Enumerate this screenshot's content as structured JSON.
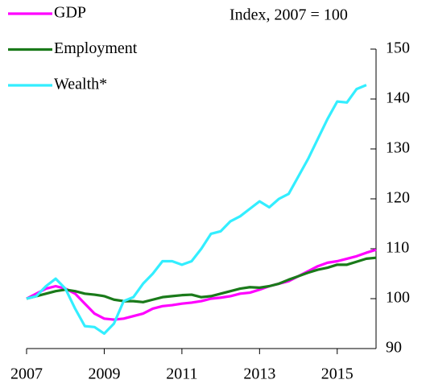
{
  "chart_data": {
    "type": "line",
    "annotation": "Index, 2007 = 100",
    "x": [
      2007,
      2007.25,
      2007.5,
      2007.75,
      2008,
      2008.25,
      2008.5,
      2008.75,
      2009,
      2009.25,
      2009.5,
      2009.75,
      2010,
      2010.25,
      2010.5,
      2010.75,
      2011,
      2011.25,
      2011.5,
      2011.75,
      2012,
      2012.25,
      2012.5,
      2012.75,
      2013,
      2013.25,
      2013.5,
      2013.75,
      2014,
      2014.25,
      2014.5,
      2014.75,
      2015,
      2015.25,
      2015.5,
      2015.75,
      2016
    ],
    "series": [
      {
        "name": "GDP",
        "color": "#ff00ff",
        "values": [
          100,
          101,
          102,
          102.5,
          102,
          101,
          99,
          97,
          96,
          95.8,
          96,
          96.5,
          97,
          98,
          98.5,
          98.7,
          99,
          99.2,
          99.5,
          100,
          100.2,
          100.5,
          101,
          101.2,
          101.8,
          102.5,
          103,
          103.5,
          104.5,
          105.5,
          106.5,
          107.2,
          107.5,
          108,
          108.5,
          109.2,
          109.8
        ]
      },
      {
        "name": "Employment",
        "color": "#1a7a1a",
        "values": [
          100,
          100.5,
          101,
          101.5,
          101.8,
          101.5,
          101,
          100.8,
          100.5,
          99.8,
          99.5,
          99.5,
          99.3,
          99.8,
          100.3,
          100.5,
          100.7,
          100.8,
          100.3,
          100.5,
          101,
          101.5,
          102,
          102.3,
          102.2,
          102.5,
          103,
          103.8,
          104.5,
          105.2,
          105.8,
          106.2,
          106.8,
          106.8,
          107.4,
          108,
          108.2
        ]
      },
      {
        "name": "Wealth*",
        "color": "#33eeff",
        "values": [
          100,
          100.5,
          102.5,
          104,
          102,
          98,
          94.5,
          94.3,
          93,
          95,
          99.5,
          100.3,
          103,
          105,
          107.5,
          107.5,
          106.8,
          107.5,
          110,
          113,
          113.5,
          115.5,
          116.5,
          118,
          119.5,
          118.3,
          120,
          121,
          124.5,
          128,
          132,
          136,
          139.5,
          139.3,
          142,
          142.8,
          null
        ]
      }
    ],
    "xlim": [
      2007,
      2016
    ],
    "xticks": [
      2007,
      2009,
      2011,
      2013,
      2015
    ],
    "ylim": [
      90,
      150
    ],
    "yticks": [
      90,
      100,
      110,
      120,
      130,
      140,
      150
    ],
    "y_axis_side": "right",
    "grid": false
  }
}
